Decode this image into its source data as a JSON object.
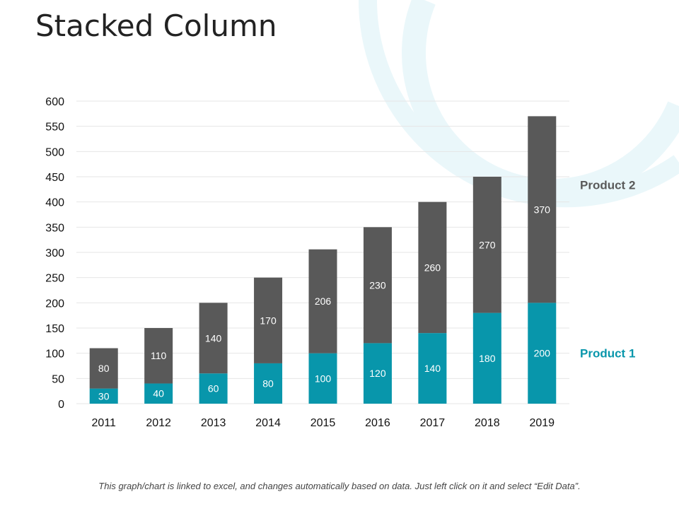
{
  "page": {
    "title": "Stacked Column",
    "footnote": "This graph/chart is linked to excel, and changes automatically based on data. Just left click on it and select “Edit Data”."
  },
  "colors": {
    "product1": "#0896AB",
    "product2": "#595959",
    "decoration": "#EAF7FA",
    "grid": "#E6E6E6"
  },
  "chart_data": {
    "type": "bar",
    "stacked": true,
    "title": "",
    "xlabel": "",
    "ylabel": "",
    "categories": [
      "2011",
      "2012",
      "2013",
      "2014",
      "2015",
      "2016",
      "2017",
      "2018",
      "2019"
    ],
    "series": [
      {
        "name": "Product 1",
        "values": [
          30,
          40,
          60,
          80,
          100,
          120,
          140,
          180,
          200
        ]
      },
      {
        "name": "Product 2",
        "values": [
          80,
          110,
          140,
          170,
          206,
          230,
          260,
          270,
          370
        ]
      }
    ],
    "ylim": [
      0,
      600
    ],
    "yticks": [
      "0",
      "50",
      "100",
      "150",
      "200",
      "250",
      "300",
      "350",
      "400",
      "450",
      "500",
      "550",
      "600"
    ],
    "grid": true,
    "legend_position": "right",
    "data_labels": true
  }
}
